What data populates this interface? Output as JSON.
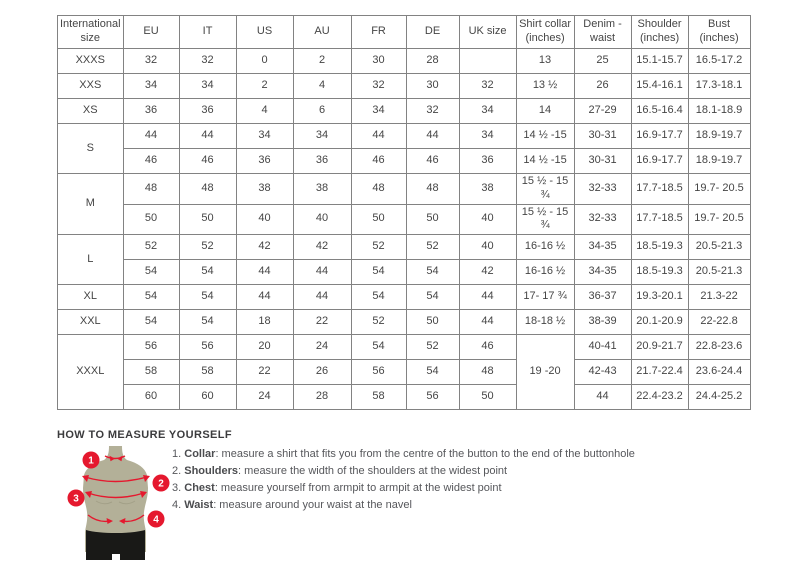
{
  "table": {
    "headers": [
      "International size",
      "EU",
      "IT",
      "US",
      "AU",
      "FR",
      "DE",
      "UK size",
      "Shirt collar (inches)",
      "Denim - waist",
      "Shoulder (inches)",
      "Bust (inches)"
    ],
    "rows": [
      [
        "XXXS",
        "32",
        "32",
        "0",
        "2",
        "30",
        "28",
        "",
        "13",
        "25",
        "15.1-15.7",
        "16.5-17.2"
      ],
      [
        "XXS",
        "34",
        "34",
        "2",
        "4",
        "32",
        "30",
        "32",
        "13 ½",
        "26",
        "15.4-16.1",
        "17.3-18.1"
      ],
      [
        "XS",
        "36",
        "36",
        "4",
        "6",
        "34",
        "32",
        "34",
        "14",
        "27-29",
        "16.5-16.4",
        "18.1-18.9"
      ],
      [
        {
          "t": "S",
          "rs": 2
        },
        "44",
        "44",
        "34",
        "34",
        "44",
        "44",
        "34",
        "14 ½ -15",
        "30-31",
        "16.9-17.7",
        "18.9-19.7"
      ],
      [
        "46",
        "46",
        "36",
        "36",
        "46",
        "46",
        "36",
        "14 ½ -15",
        "30-31",
        "16.9-17.7",
        "18.9-19.7"
      ],
      [
        {
          "t": "M",
          "rs": 2
        },
        "48",
        "48",
        "38",
        "38",
        "48",
        "48",
        "38",
        "15 ½ - 15 ¾",
        "32-33",
        "17.7-18.5",
        "19.7- 20.5"
      ],
      [
        "50",
        "50",
        "40",
        "40",
        "50",
        "50",
        "40",
        "15 ½ - 15 ¾",
        "32-33",
        "17.7-18.5",
        "19.7- 20.5"
      ],
      [
        {
          "t": "L",
          "rs": 2
        },
        "52",
        "52",
        "42",
        "42",
        "52",
        "52",
        "40",
        "16-16 ½",
        "34-35",
        "18.5-19.3",
        "20.5-21.3"
      ],
      [
        "54",
        "54",
        "44",
        "44",
        "54",
        "54",
        "42",
        "16-16 ½",
        "34-35",
        "18.5-19.3",
        "20.5-21.3"
      ],
      [
        "XL",
        "54",
        "54",
        "44",
        "44",
        "54",
        "54",
        "44",
        "17- 17 ¾",
        "36-37",
        "19.3-20.1",
        "21.3-22"
      ],
      [
        "XXL",
        "54",
        "54",
        "18",
        "22",
        "52",
        "50",
        "44",
        "18-18 ½",
        "38-39",
        "20.1-20.9",
        "22-22.8"
      ],
      [
        {
          "t": "XXXL",
          "rs": 3
        },
        "56",
        "56",
        "20",
        "24",
        "54",
        "52",
        "46",
        {
          "t": "19 -20",
          "rs": 3
        },
        "40-41",
        "20.9-21.7",
        "22.8-23.6"
      ],
      [
        "58",
        "58",
        "22",
        "26",
        "56",
        "54",
        "48",
        "42-43",
        "21.7-22.4",
        "23.6-24.4"
      ],
      [
        "60",
        "60",
        "24",
        "28",
        "58",
        "56",
        "50",
        "44",
        "22.4-23.2",
        "24.4-25.2"
      ]
    ]
  },
  "measure": {
    "title": "HOW TO MEASURE YOURSELF",
    "steps": [
      {
        "num": "1.",
        "label": "Collar",
        "text": ": measure a shirt that fits you from the centre of the button to the end of the buttonhole"
      },
      {
        "num": "2.",
        "label": "Shoulders",
        "text": ": measure the width of the shoulders at the widest point"
      },
      {
        "num": "3.",
        "label": "Chest",
        "text": ": measure yourself from armpit to armpit at the widest point"
      },
      {
        "num": "4.",
        "label": "Waist",
        "text": ": measure around your waist at the navel"
      }
    ]
  },
  "figure": {
    "markers": [
      "1",
      "2",
      "3",
      "4"
    ],
    "colors": {
      "red": "#e5182e",
      "body": "#b3b098",
      "shorts": "#191917"
    }
  }
}
